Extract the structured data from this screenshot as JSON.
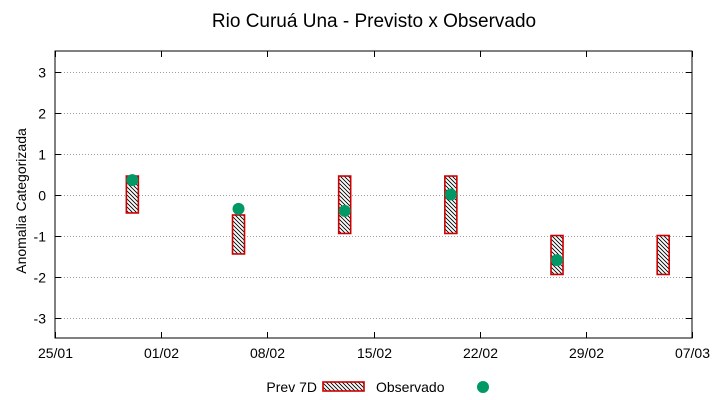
{
  "chart_data": {
    "type": "range-bar-with-points",
    "title": "Rio Curuá Una - Previsto x Observado",
    "ylabel": "Anomalia Categorizada",
    "xlabel": "",
    "ylim": [
      -3.5,
      3.5
    ],
    "yticks": [
      -3,
      -2,
      -1,
      0,
      1,
      2,
      3
    ],
    "ytick_labels": [
      "-3",
      "-2",
      "-1",
      "0",
      "1",
      "2",
      "3"
    ],
    "xlim_days": [
      0,
      42
    ],
    "xticks_days": [
      0,
      7,
      14,
      21,
      28,
      35,
      42
    ],
    "xtick_labels": [
      "25/01",
      "01/02",
      "08/02",
      "15/02",
      "22/02",
      "29/02",
      "07/03"
    ],
    "grid": true,
    "series": [
      {
        "name": "Prev 7D",
        "kind": "range",
        "color": "#cc0000",
        "points": [
          {
            "x_days": 5.1,
            "low": -0.45,
            "high": 0.45
          },
          {
            "x_days": 12.1,
            "low": -1.45,
            "high": -0.5
          },
          {
            "x_days": 19.1,
            "low": -0.95,
            "high": 0.45
          },
          {
            "x_days": 26.1,
            "low": -0.95,
            "high": 0.45
          },
          {
            "x_days": 33.1,
            "low": -1.95,
            "high": -1.0
          },
          {
            "x_days": 40.1,
            "low": -1.95,
            "high": -1.0
          }
        ]
      },
      {
        "name": "Observado",
        "kind": "point",
        "color": "#009966",
        "points": [
          {
            "x_days": 5.1,
            "y": 0.35
          },
          {
            "x_days": 12.1,
            "y": -0.35
          },
          {
            "x_days": 19.1,
            "y": -0.4
          },
          {
            "x_days": 26.1,
            "y": 0.0
          },
          {
            "x_days": 33.1,
            "y": -1.6
          }
        ]
      }
    ],
    "legend": {
      "placement": "bottom-center",
      "entries": [
        "Prev 7D",
        "Observado"
      ]
    }
  }
}
